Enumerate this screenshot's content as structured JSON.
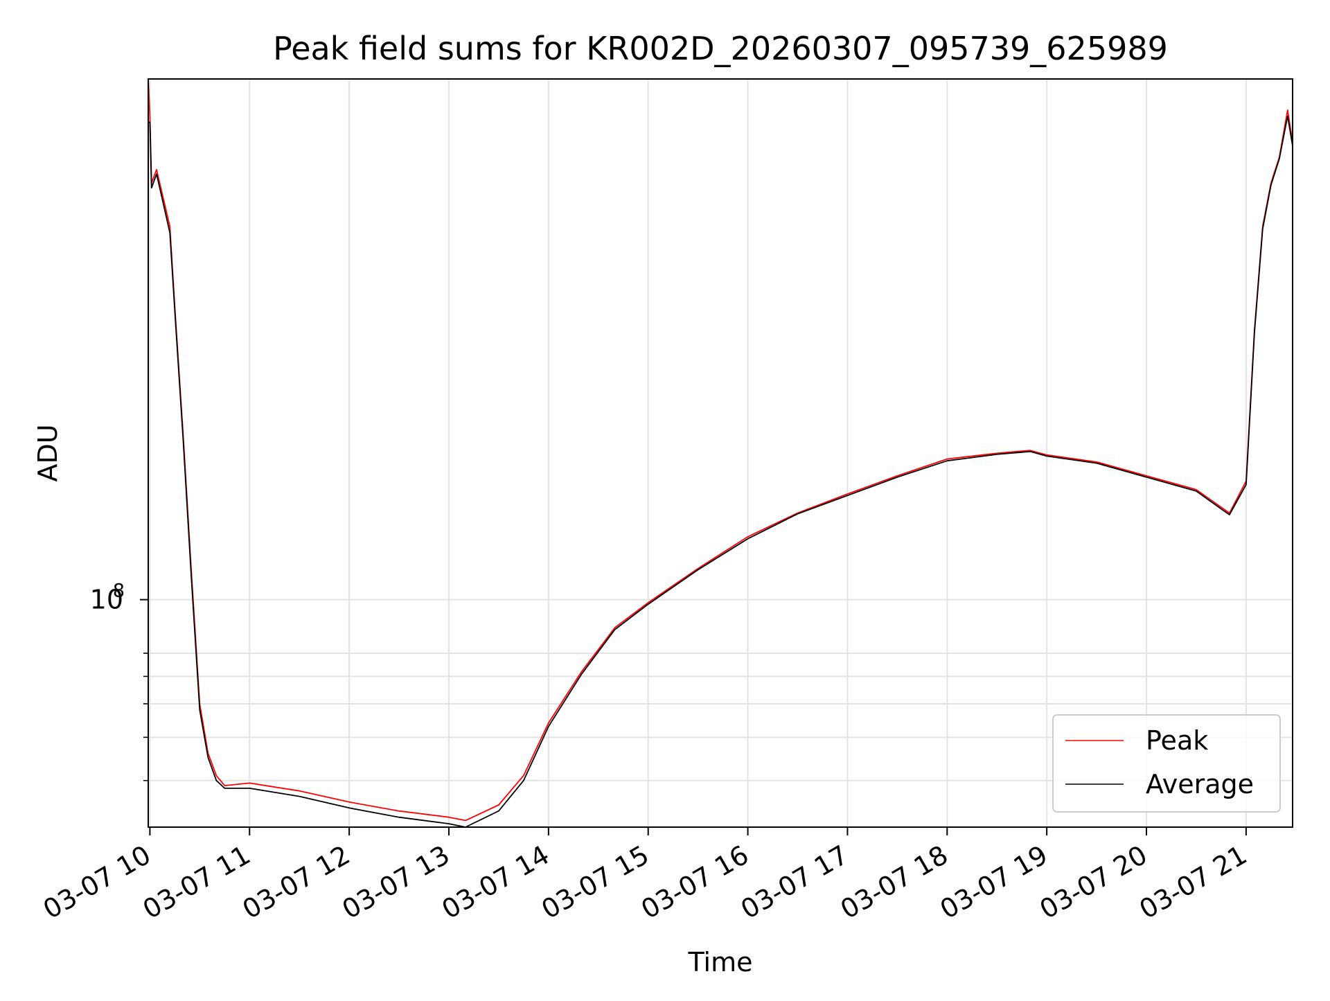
{
  "chart_data": {
    "type": "line",
    "title": "Peak field sums for KR002D_20260307_095739_625989",
    "xlabel": "Time",
    "ylabel": "ADU",
    "yscale": "log",
    "xlim": [
      "2026-03-07 09:59",
      "2026-03-07 21:28"
    ],
    "ylim": [
      22000000.0,
      3200000000.0
    ],
    "x_ticks": [
      "03-07 10",
      "03-07 11",
      "03-07 12",
      "03-07 13",
      "03-07 14",
      "03-07 15",
      "03-07 16",
      "03-07 17",
      "03-07 18",
      "03-07 19",
      "03-07 20",
      "03-07 21"
    ],
    "x_tick_values": [
      "2026-03-07 10:00",
      "2026-03-07 11:00",
      "2026-03-07 12:00",
      "2026-03-07 13:00",
      "2026-03-07 14:00",
      "2026-03-07 15:00",
      "2026-03-07 16:00",
      "2026-03-07 17:00",
      "2026-03-07 18:00",
      "2026-03-07 19:00",
      "2026-03-07 20:00",
      "2026-03-07 21:00"
    ],
    "y_major_tick": {
      "value": 100000000.0,
      "base": "10",
      "exponent": "8"
    },
    "y_minor_ticks": [
      30000000.0,
      40000000.0,
      50000000.0,
      60000000.0,
      70000000.0
    ],
    "grid": true,
    "legend_position": "lower-right",
    "series": [
      {
        "name": "Peak",
        "color": "#ff0000",
        "x": [
          "2026-03-07 09:59",
          "2026-03-07 10:00",
          "2026-03-07 10:01",
          "2026-03-07 10:04",
          "2026-03-07 10:08",
          "2026-03-07 10:12",
          "2026-03-07 10:15",
          "2026-03-07 10:20",
          "2026-03-07 10:25",
          "2026-03-07 10:30",
          "2026-03-07 10:35",
          "2026-03-07 10:40",
          "2026-03-07 10:45",
          "2026-03-07 11:00",
          "2026-03-07 11:30",
          "2026-03-07 12:00",
          "2026-03-07 12:30",
          "2026-03-07 13:00",
          "2026-03-07 13:10",
          "2026-03-07 13:30",
          "2026-03-07 13:45",
          "2026-03-07 14:00",
          "2026-03-07 14:20",
          "2026-03-07 14:40",
          "2026-03-07 15:00",
          "2026-03-07 15:30",
          "2026-03-07 16:00",
          "2026-03-07 16:30",
          "2026-03-07 17:00",
          "2026-03-07 17:30",
          "2026-03-07 18:00",
          "2026-03-07 18:30",
          "2026-03-07 18:50",
          "2026-03-07 19:00",
          "2026-03-07 19:30",
          "2026-03-07 20:00",
          "2026-03-07 20:30",
          "2026-03-07 20:45",
          "2026-03-07 20:50",
          "2026-03-07 21:00",
          "2026-03-07 21:05",
          "2026-03-07 21:10",
          "2026-03-07 21:15",
          "2026-03-07 21:20",
          "2026-03-07 21:25",
          "2026-03-07 21:28"
        ],
        "y": [
          3200000000.0,
          2500000000.0,
          1600000000.0,
          1750000000.0,
          1450000000.0,
          1200000000.0,
          700000000.0,
          300000000.0,
          120000000.0,
          50000000.0,
          36000000.0,
          31000000.0,
          29000000.0,
          29500000.0,
          28000000.0,
          26000000.0,
          24500000.0,
          23500000.0,
          23000000.0,
          25500000.0,
          31000000.0,
          44000000.0,
          62000000.0,
          83000000.0,
          98000000.0,
          123000000.0,
          152000000.0,
          178000000.0,
          202000000.0,
          228000000.0,
          255000000.0,
          265000000.0,
          270000000.0,
          262000000.0,
          250000000.0,
          228000000.0,
          208000000.0,
          185000000.0,
          178000000.0,
          220000000.0,
          600000000.0,
          1200000000.0,
          1600000000.0,
          1900000000.0,
          2600000000.0,
          2100000000.0
        ]
      },
      {
        "name": "Average",
        "color": "#000000",
        "x": [
          "2026-03-07 09:59",
          "2026-03-07 10:00",
          "2026-03-07 10:01",
          "2026-03-07 10:04",
          "2026-03-07 10:08",
          "2026-03-07 10:12",
          "2026-03-07 10:15",
          "2026-03-07 10:20",
          "2026-03-07 10:25",
          "2026-03-07 10:30",
          "2026-03-07 10:35",
          "2026-03-07 10:40",
          "2026-03-07 10:45",
          "2026-03-07 11:00",
          "2026-03-07 11:30",
          "2026-03-07 12:00",
          "2026-03-07 12:30",
          "2026-03-07 13:00",
          "2026-03-07 13:10",
          "2026-03-07 13:30",
          "2026-03-07 13:45",
          "2026-03-07 14:00",
          "2026-03-07 14:20",
          "2026-03-07 14:40",
          "2026-03-07 15:00",
          "2026-03-07 15:30",
          "2026-03-07 16:00",
          "2026-03-07 16:30",
          "2026-03-07 17:00",
          "2026-03-07 17:30",
          "2026-03-07 18:00",
          "2026-03-07 18:30",
          "2026-03-07 18:50",
          "2026-03-07 19:00",
          "2026-03-07 19:30",
          "2026-03-07 20:00",
          "2026-03-07 20:30",
          "2026-03-07 20:45",
          "2026-03-07 20:50",
          "2026-03-07 21:00",
          "2026-03-07 21:05",
          "2026-03-07 21:10",
          "2026-03-07 21:15",
          "2026-03-07 21:20",
          "2026-03-07 21:25",
          "2026-03-07 21:28"
        ],
        "y": [
          2400000000.0,
          2400000000.0,
          1550000000.0,
          1700000000.0,
          1400000000.0,
          1150000000.0,
          680000000.0,
          290000000.0,
          115000000.0,
          48000000.0,
          35000000.0,
          30000000.0,
          28500000.0,
          28500000.0,
          27000000.0,
          25000000.0,
          23500000.0,
          22500000.0,
          22000000.0,
          24500000.0,
          30000000.0,
          43000000.0,
          61000000.0,
          82000000.0,
          97000000.0,
          122000000.0,
          150000000.0,
          177000000.0,
          200000000.0,
          226000000.0,
          252000000.0,
          263000000.0,
          268000000.0,
          260000000.0,
          248000000.0,
          226000000.0,
          206000000.0,
          183000000.0,
          176000000.0,
          215000000.0,
          590000000.0,
          1180000000.0,
          1580000000.0,
          1880000000.0,
          2500000000.0,
          2050000000.0
        ]
      }
    ]
  }
}
